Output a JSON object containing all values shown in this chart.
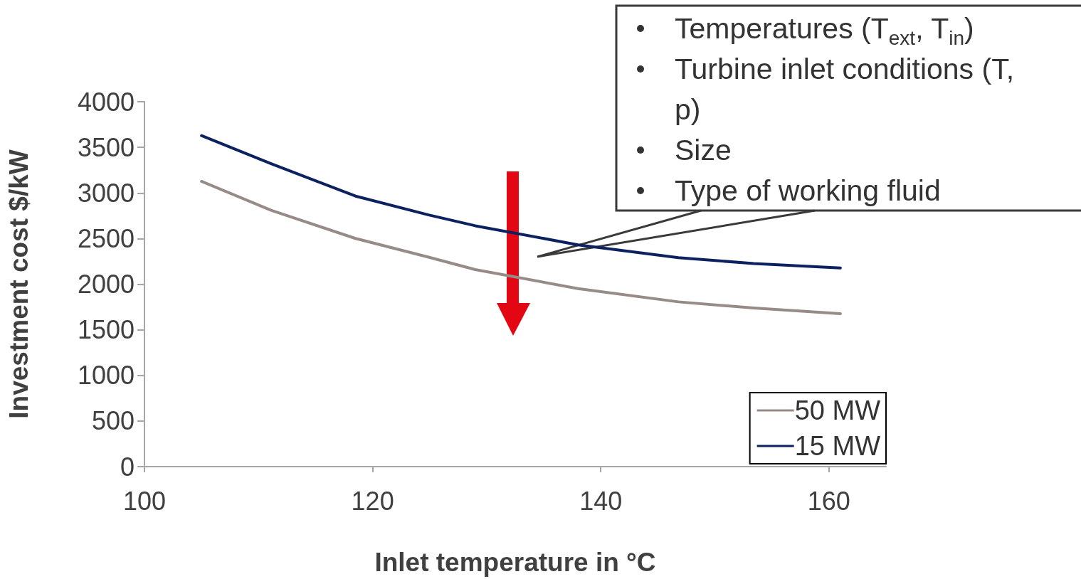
{
  "chart_data": {
    "type": "line",
    "x": [
      105,
      111.1,
      118.5,
      124.9,
      129,
      138,
      146.8,
      153.4,
      161
    ],
    "series": [
      {
        "name": "50 MW",
        "color": "#968b86",
        "values": [
          3127,
          2810,
          2501,
          2296,
          2160,
          1951,
          1806,
          1739,
          1677
        ]
      },
      {
        "name": "15 MW",
        "color": "#0c2160",
        "values": [
          3628,
          3321,
          2965,
          2759,
          2640,
          2431,
          2291,
          2226,
          2178
        ]
      }
    ],
    "xlabel": "Inlet temperature in °C",
    "ylabel": "Investment cost $/kW",
    "xlim": [
      100,
      165
    ],
    "xticks": [
      100,
      120,
      140,
      160
    ],
    "ylim": [
      0,
      4000
    ],
    "yticks": [
      0,
      500,
      1000,
      1500,
      2000,
      2500,
      3000,
      3500,
      4000
    ],
    "annotations": [
      "Temperatures (T$_{ext}$, T$_{in}$)",
      "Turbine inlet conditions (T, p)",
      "Size",
      "Type of working fluid"
    ],
    "grid": false,
    "legend": "bottom right",
    "marker": "none",
    "line_style": "solid"
  }
}
